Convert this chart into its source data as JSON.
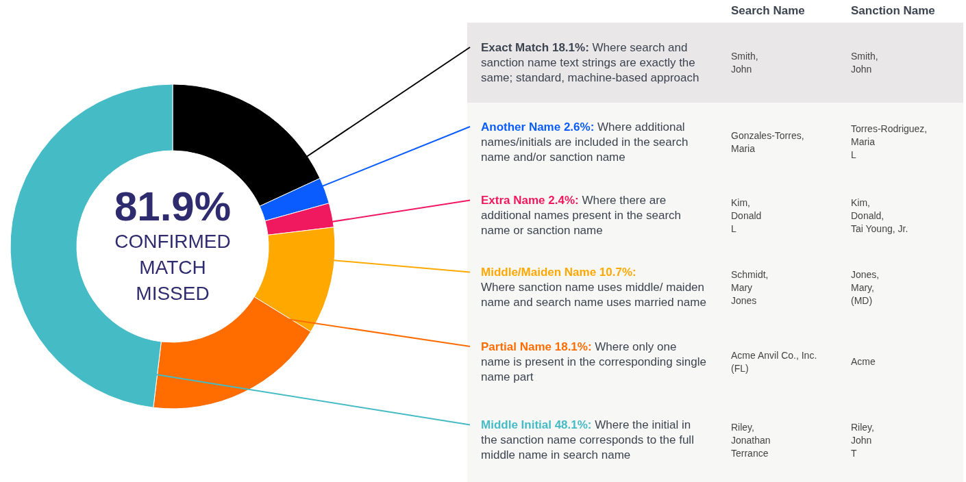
{
  "chart_data": {
    "type": "donut",
    "title": "81.9%",
    "subtitle": "CONFIRMED MATCH MISSED",
    "categories": [
      "Exact Match",
      "Another Name",
      "Extra Name",
      "Middle/Maiden Name",
      "Partial Name",
      "Middle Initial"
    ],
    "values": [
      18.1,
      2.6,
      2.4,
      10.7,
      18.1,
      48.1
    ],
    "value_labels": [
      "18.1%:",
      "2.6%:",
      "2.4%:",
      "10.7%:",
      "18.1%:",
      "48.1%:"
    ],
    "colors": [
      "#000000",
      "#0a5cff",
      "#f0185f",
      "#ffa800",
      "#ff6d00",
      "#45bbc6"
    ],
    "annotations": [
      "Search Name",
      "Sanction Name",
      "Where search and sanction name text strings are exactly the same; standard, machine-based approach",
      "Smith,\nJohn",
      "Smith,\nJohn",
      "Where additional names/initials are included in the search name and/or sanction name",
      "Gonzales-Torres,\nMaria",
      "Torres-Rodriguez,\nMaria\nL",
      "Where there are additional names present in the search name or sanction name",
      "Kim,\nDonald\nL",
      "Kim,\nDonald,\nTai Young, Jr.",
      "Where sanction name uses middle/ maiden name and search name uses married name",
      "Schmidt,\nMary\nJones",
      "Jones,\nMary,\n(MD)",
      "Where only one name is present in the corresponding single name part",
      "Acme Anvil Co., Inc.\n(FL)",
      "Acme",
      "Where the initial in the sanction name corresponds to the full middle name in search name",
      "Riley,\nJonathan\nTerrance",
      "Riley,\nJohn\nT"
    ]
  }
}
